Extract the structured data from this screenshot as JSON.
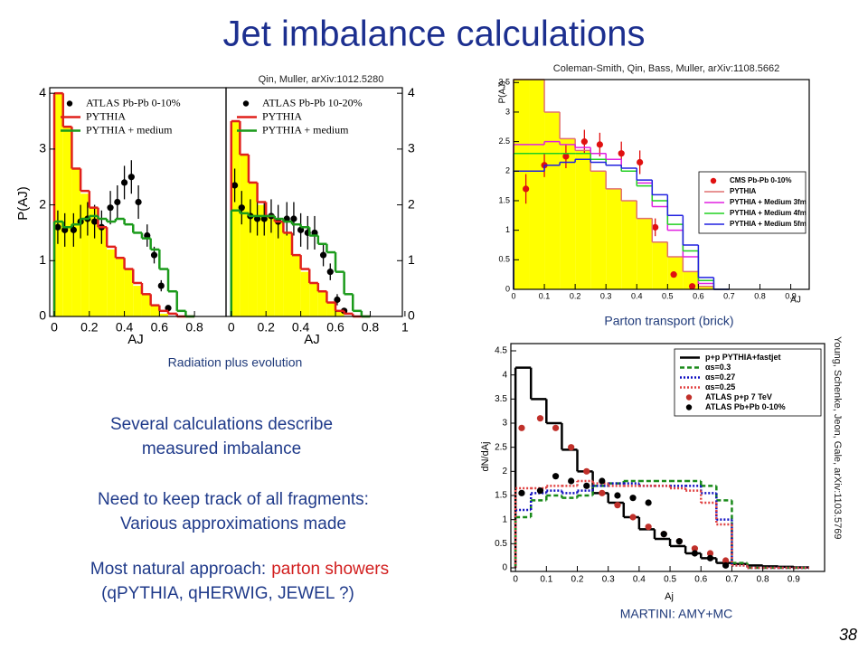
{
  "slide": {
    "title": "Jet imbalance calculations",
    "page_number": 38,
    "refs": [
      "Qin, Muller, arXiv:1012.5280",
      "Coleman-Smith, Qin, Bass, Muller, arXiv:1108.5662",
      "Young, Schenke, Jeon, Gale, arXiv:1103.5769"
    ],
    "captions": [
      "Radiation plus evolution",
      "Parton transport (brick)",
      "MARTINI: AMY+MC"
    ],
    "points": [
      [
        "Several calculations describe",
        "measured imbalance"
      ],
      [
        "Need to keep track of all fragments:",
        "Various approximations made"
      ]
    ],
    "last_point": {
      "lead": "Most natural approach:",
      "highlight": "parton showers",
      "second_line": "(qPYTHIA, qHERWIG, JEWEL ?)"
    }
  },
  "chart_data": [
    {
      "type": "histogram",
      "x_label": "AJ",
      "y_label": "P(AJ)",
      "xlim": [
        -0.026,
        0.98
      ],
      "ylim": [
        0,
        4.1
      ],
      "xticks": [
        0,
        0.2,
        0.4,
        0.6,
        0.8
      ],
      "yticks": [
        0,
        1,
        2,
        3,
        4
      ],
      "y_axis_side": "left",
      "legend": "top-left",
      "bins": [
        0,
        0.05,
        0.1,
        0.15,
        0.2,
        0.25,
        0.3,
        0.35,
        0.4,
        0.45,
        0.5,
        0.55,
        0.6,
        0.65,
        0.7,
        0.75,
        0.8
      ],
      "series": [
        {
          "style": "fill",
          "color": "#ffff00",
          "values": [
            4.0,
            3.4,
            2.65,
            2.2,
            1.95,
            1.6,
            1.2,
            1.05,
            0.85,
            0.55,
            0.4,
            0.2,
            0.05,
            0,
            0,
            0
          ]
        },
        {
          "name": "ATLAS Pb-Pb 0-10%",
          "style": "points",
          "color": "#000000",
          "x": [
            0.02,
            0.06,
            0.11,
            0.15,
            0.19,
            0.23,
            0.27,
            0.32,
            0.36,
            0.4,
            0.44,
            0.48,
            0.53,
            0.57,
            0.61,
            0.65
          ],
          "values": [
            1.6,
            1.55,
            1.55,
            1.7,
            1.75,
            1.7,
            1.6,
            1.95,
            2.05,
            2.4,
            2.5,
            2.05,
            1.45,
            1.1,
            0.55,
            0.15
          ],
          "errors": [
            0.3,
            0.3,
            0.3,
            0.3,
            0.3,
            0.3,
            0.3,
            0.3,
            0.3,
            0.3,
            0.3,
            0.3,
            0.2,
            0.15,
            0.1,
            0.05
          ]
        },
        {
          "name": "PYTHIA",
          "style": "line",
          "color": "#e0201b",
          "values": [
            4.0,
            3.4,
            2.65,
            2.25,
            1.95,
            1.6,
            1.25,
            1.05,
            0.85,
            0.6,
            0.4,
            0.2,
            0.1,
            0.05,
            0,
            0
          ]
        },
        {
          "name": "PYTHIA + medium",
          "style": "line",
          "color": "#1a9a1a",
          "values": [
            1.7,
            1.6,
            1.65,
            1.75,
            1.8,
            1.75,
            1.7,
            1.75,
            1.65,
            1.5,
            1.4,
            1.2,
            0.85,
            0.45,
            0.1,
            0
          ]
        }
      ]
    },
    {
      "type": "histogram",
      "x_label": "AJ",
      "xlim": [
        -0.03,
        0.985
      ],
      "ylim": [
        0,
        4.1
      ],
      "xticks": [
        0,
        0.2,
        0.4,
        0.6,
        0.8,
        1
      ],
      "yticks": [
        0,
        1,
        2,
        3,
        4
      ],
      "y_axis_side": "right",
      "legend": "top-left",
      "bins": [
        0,
        0.05,
        0.1,
        0.15,
        0.2,
        0.25,
        0.3,
        0.35,
        0.4,
        0.45,
        0.5,
        0.55,
        0.6,
        0.65,
        0.7,
        0.75,
        0.8
      ],
      "series": [
        {
          "style": "fill",
          "color": "#ffff00",
          "values": [
            3.5,
            2.9,
            2.4,
            2.0,
            1.8,
            1.7,
            1.5,
            1.1,
            0.8,
            0.6,
            0.45,
            0.25,
            0.1,
            0,
            0,
            0
          ]
        },
        {
          "name": "ATLAS Pb-Pb 10-20%",
          "style": "points",
          "color": "#000000",
          "x": [
            0.02,
            0.06,
            0.11,
            0.15,
            0.19,
            0.23,
            0.27,
            0.32,
            0.36,
            0.4,
            0.44,
            0.48,
            0.53,
            0.57,
            0.61,
            0.65
          ],
          "values": [
            2.35,
            1.95,
            1.8,
            1.75,
            1.75,
            1.8,
            1.7,
            1.75,
            1.75,
            1.55,
            1.5,
            1.5,
            1.1,
            0.8,
            0.3,
            0.1
          ],
          "errors": [
            0.3,
            0.3,
            0.3,
            0.3,
            0.3,
            0.3,
            0.3,
            0.3,
            0.3,
            0.3,
            0.3,
            0.3,
            0.2,
            0.15,
            0.1,
            0.05
          ]
        },
        {
          "name": "PYTHIA",
          "style": "line",
          "color": "#e0201b",
          "values": [
            3.5,
            2.9,
            2.4,
            2.05,
            1.8,
            1.7,
            1.5,
            1.1,
            0.85,
            0.6,
            0.45,
            0.25,
            0.1,
            0.05,
            0,
            0
          ]
        },
        {
          "name": "PYTHIA + medium",
          "style": "line",
          "color": "#1a9a1a",
          "values": [
            1.9,
            1.85,
            1.8,
            1.8,
            1.8,
            1.75,
            1.7,
            1.65,
            1.6,
            1.45,
            1.3,
            1.15,
            0.8,
            0.4,
            0.1,
            0
          ]
        }
      ]
    },
    {
      "type": "histogram",
      "x_label": "AJ",
      "y_label": "P(AJ)",
      "xlim": [
        0,
        0.96
      ],
      "ylim": [
        0,
        3.55
      ],
      "xticks": [
        0,
        0.1,
        0.2,
        0.3,
        0.4,
        0.5,
        0.6,
        0.7,
        0.8,
        0.9
      ],
      "yticks": [
        0,
        0.5,
        1,
        1.5,
        2,
        2.5,
        3,
        3.5
      ],
      "y_axis_side": "left",
      "legend": "center-right",
      "bins": [
        0,
        0.05,
        0.1,
        0.15,
        0.2,
        0.25,
        0.3,
        0.35,
        0.4,
        0.45,
        0.5,
        0.55,
        0.6,
        0.65,
        0.7
      ],
      "series": [
        {
          "style": "fill",
          "color": "#ffff00",
          "values": [
            3.55,
            3.55,
            3.0,
            2.55,
            2.35,
            2.0,
            1.7,
            1.5,
            1.2,
            0.8,
            0.55,
            0.3,
            0.05,
            0
          ]
        },
        {
          "name": "CMS Pb-Pb 0-10%",
          "style": "points",
          "color": "#e01010",
          "x": [
            0.04,
            0.1,
            0.17,
            0.23,
            0.28,
            0.35,
            0.41,
            0.46,
            0.52,
            0.58
          ],
          "values": [
            1.7,
            2.1,
            2.25,
            2.5,
            2.45,
            2.3,
            2.15,
            1.05,
            0.25,
            0.05
          ],
          "errors": [
            0.25,
            0.2,
            0.2,
            0.2,
            0.2,
            0.2,
            0.2,
            0.15,
            0.05,
            0.02
          ]
        },
        {
          "name": "PYTHIA",
          "style": "line",
          "color": "#e07070",
          "values": [
            3.55,
            3.55,
            3.0,
            2.55,
            2.35,
            2.0,
            1.7,
            1.5,
            1.2,
            0.8,
            0.55,
            0.3,
            0.05,
            0
          ]
        },
        {
          "name": "PYTHIA + Medium 3fm",
          "style": "line",
          "color": "#e020e0",
          "values": [
            2.45,
            2.45,
            2.5,
            2.45,
            2.4,
            2.3,
            2.2,
            2.0,
            1.8,
            1.4,
            1.0,
            0.55,
            0.1,
            0
          ]
        },
        {
          "name": "PYTHIA + Medium 4fm",
          "style": "line",
          "color": "#20d020",
          "values": [
            2.3,
            2.3,
            2.3,
            2.3,
            2.3,
            2.2,
            2.1,
            2.0,
            1.75,
            1.5,
            1.1,
            0.65,
            0.15,
            0
          ]
        },
        {
          "name": "PYTHIA + Medium 5fm",
          "style": "line",
          "color": "#2020e0",
          "values": [
            2.0,
            2.0,
            2.1,
            2.15,
            2.2,
            2.15,
            2.1,
            2.05,
            1.85,
            1.6,
            1.25,
            0.75,
            0.2,
            0
          ]
        }
      ]
    },
    {
      "type": "histogram",
      "x_label": "Aj",
      "y_label": "dN/dAj",
      "xlim": [
        -0.015,
        1.0
      ],
      "ylim": [
        -0.075,
        4.65
      ],
      "xticks": [
        0,
        0.1,
        0.2,
        0.3,
        0.4,
        0.5,
        0.6,
        0.7,
        0.8,
        0.9
      ],
      "yticks": [
        0,
        0.5,
        1,
        1.5,
        2,
        2.5,
        3,
        3.5,
        4,
        4.5
      ],
      "y_axis_side": "left",
      "legend": "top-right",
      "bins": [
        0,
        0.05,
        0.1,
        0.15,
        0.2,
        0.25,
        0.3,
        0.35,
        0.4,
        0.45,
        0.5,
        0.55,
        0.6,
        0.65,
        0.7,
        0.75,
        0.8,
        0.85,
        0.9,
        0.95
      ],
      "series": [
        {
          "name": "p+p PYTHIA+fastjet",
          "style": "line",
          "color": "#000000",
          "values": [
            4.15,
            3.5,
            3.0,
            2.45,
            2.0,
            1.55,
            1.35,
            1.05,
            0.8,
            0.6,
            0.45,
            0.3,
            0.2,
            0.1,
            0.08,
            0.05,
            0.03,
            0.02,
            0.01
          ]
        },
        {
          "name": "αs=0.3",
          "style": "dashed",
          "color": "#1a8a1a",
          "values": [
            1.05,
            1.4,
            1.5,
            1.45,
            1.5,
            1.7,
            1.75,
            1.8,
            1.8,
            1.8,
            1.8,
            1.8,
            1.7,
            1.4,
            0.1,
            0,
            0,
            0,
            0
          ]
        },
        {
          "name": "αs=0.27",
          "style": "dotted",
          "color": "#1010c0",
          "values": [
            1.2,
            1.55,
            1.6,
            1.55,
            1.6,
            1.7,
            1.75,
            1.75,
            1.7,
            1.7,
            1.7,
            1.7,
            1.55,
            1.0,
            0.05,
            0,
            0,
            0,
            0
          ]
        },
        {
          "name": "αs=0.25",
          "style": "dotted",
          "color": "#e04040",
          "values": [
            1.65,
            1.65,
            1.7,
            1.7,
            1.8,
            1.75,
            1.7,
            1.7,
            1.7,
            1.7,
            1.65,
            1.6,
            1.35,
            0.9,
            0.05,
            0,
            0,
            0,
            0
          ]
        },
        {
          "name": "ATLAS p+p 7 TeV",
          "style": "points",
          "color": "#c0302a",
          "x": [
            0.02,
            0.08,
            0.13,
            0.18,
            0.23,
            0.28,
            0.33,
            0.38,
            0.43,
            0.48,
            0.53,
            0.58,
            0.63,
            0.68
          ],
          "values": [
            2.9,
            3.1,
            2.9,
            2.5,
            2.0,
            1.55,
            1.3,
            1.05,
            0.85,
            0.7,
            0.55,
            0.4,
            0.3,
            0.15
          ]
        },
        {
          "name": "ATLAS Pb+Pb 0-10%",
          "style": "points",
          "color": "#000000",
          "x": [
            0.02,
            0.08,
            0.13,
            0.18,
            0.23,
            0.28,
            0.33,
            0.38,
            0.43,
            0.48,
            0.53,
            0.58,
            0.63,
            0.68
          ],
          "values": [
            1.55,
            1.6,
            1.9,
            1.8,
            1.7,
            1.8,
            1.5,
            1.45,
            1.35,
            0.7,
            0.55,
            0.3,
            0.2,
            0.05
          ]
        }
      ]
    }
  ]
}
